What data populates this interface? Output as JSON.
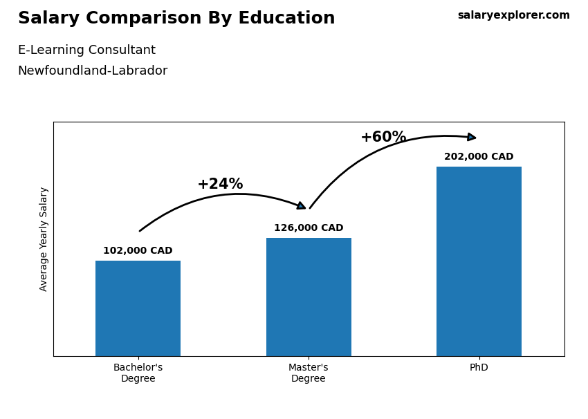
{
  "chart_data": {
    "type": "bar",
    "title": "Salary Comparison By Education",
    "subtitle": [
      "E-Learning Consultant",
      "Newfoundland-Labrador"
    ],
    "y_label": "Average Yearly Salary",
    "categories": [
      "Bachelor's\nDegree",
      "Master's\nDegree",
      "PhD"
    ],
    "values": [
      102000,
      126000,
      202000
    ],
    "value_labels": [
      "102,000 CAD",
      "126,000 CAD",
      "202,000 CAD"
    ],
    "data_labels": true,
    "ylim": [
      0,
      250000
    ],
    "tick_labels": "x",
    "grid": false,
    "annotations": [
      {
        "text": "+24%",
        "from": "Bachelor's\nDegree",
        "to": "Master's\nDegree"
      },
      {
        "text": "+60%",
        "from": "Master's\nDegree",
        "to": "PhD"
      },
      {
        "text": "salaryexplorer.com"
      }
    ]
  }
}
